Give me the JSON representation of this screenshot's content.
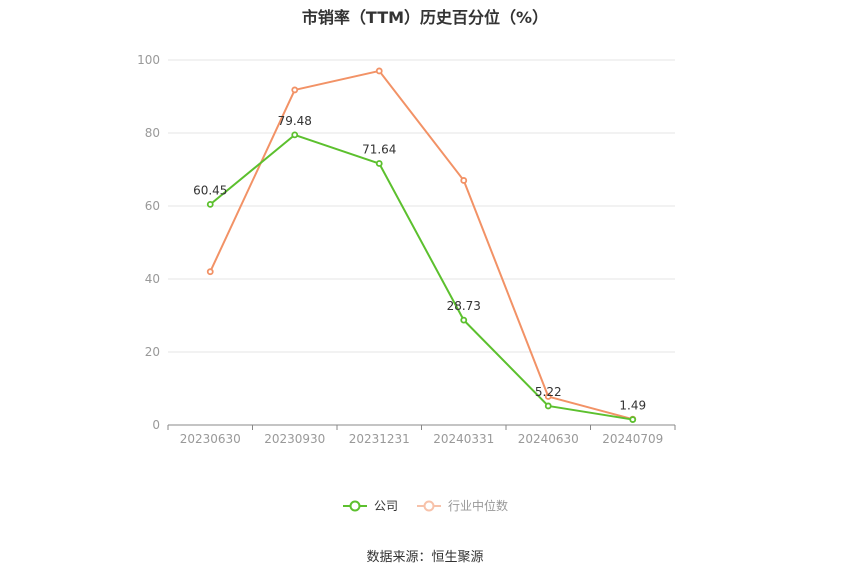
{
  "chart_data": {
    "type": "line",
    "title": "市销率（TTM）历史百分位（%）",
    "categories": [
      "20230630",
      "20230930",
      "20231231",
      "20240331",
      "20240630",
      "20240709"
    ],
    "ylim": [
      0,
      100
    ],
    "yticks": [
      0,
      20,
      40,
      60,
      80,
      100
    ],
    "grid": true,
    "legend_position": "bottom",
    "series": [
      {
        "name": "公司",
        "color": "#5cc02e",
        "values": [
          60.45,
          79.48,
          71.64,
          28.73,
          5.22,
          1.49
        ],
        "labels": [
          "60.45",
          "79.48",
          "71.64",
          "28.73",
          "5.22",
          "1.49"
        ]
      },
      {
        "name": "行业中位数",
        "color": "#f29266",
        "values": [
          42.0,
          91.8,
          97.0,
          67.0,
          7.8,
          1.6
        ]
      }
    ]
  },
  "source_text": "数据来源：恒生聚源"
}
